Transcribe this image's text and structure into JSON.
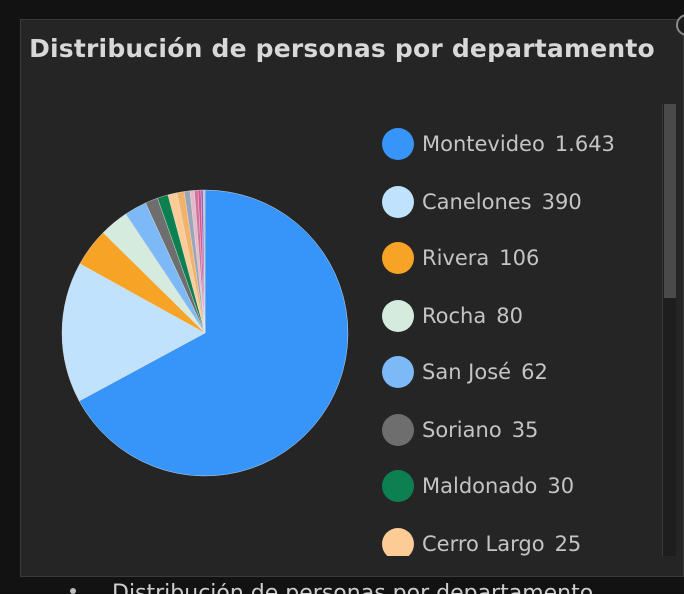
{
  "chart_data": {
    "type": "pie",
    "title": "Distribución de personas por departamento",
    "legend_position": "right",
    "slices": [
      {
        "name": "Montevideo",
        "value_label": "1.643",
        "value": 1643,
        "color": "#3795FA"
      },
      {
        "name": "Canelones",
        "value_label": "390",
        "value": 390,
        "color": "#C0E2FC"
      },
      {
        "name": "Rivera",
        "value_label": "106",
        "value": 106,
        "color": "#F7A325"
      },
      {
        "name": "Rocha",
        "value_label": "80",
        "value": 80,
        "color": "#D4EBDE"
      },
      {
        "name": "San José",
        "value_label": "62",
        "value": 62,
        "color": "#7DB8F7"
      },
      {
        "name": "Soriano",
        "value_label": "35",
        "value": 35,
        "color": "#6E6E6E"
      },
      {
        "name": "Maldonado",
        "value_label": "30",
        "value": 30,
        "color": "#0C8050"
      },
      {
        "name": "Cerro Largo",
        "value_label": "25",
        "value": 25,
        "color": "#FCCB96"
      }
    ],
    "additional_small_slices": [
      {
        "value": 20,
        "color": "#F2B26A"
      },
      {
        "value": 16,
        "color": "#9AA6B8"
      },
      {
        "value": 12,
        "color": "#E7B7C9"
      },
      {
        "value": 10,
        "color": "#C9779A"
      },
      {
        "value": 8,
        "color": "#E64C8E"
      },
      {
        "value": 6,
        "color": "#8E63C9"
      },
      {
        "value": 5,
        "color": "#BDBDBD"
      }
    ]
  },
  "below_panel_text": "Distribución de personas por departamento"
}
